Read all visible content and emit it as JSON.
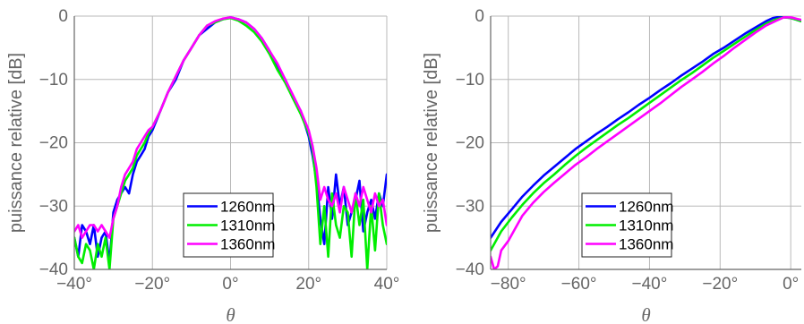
{
  "chart_data": [
    {
      "type": "line",
      "xlabel": "θ",
      "ylabel": "puissance relative [dB]",
      "xlim": [
        -40,
        40
      ],
      "ylim": [
        -40,
        0
      ],
      "xticks": [
        -40,
        -20,
        0,
        20,
        40
      ],
      "xtick_labels": [
        "−40°",
        "−20°",
        "0°",
        "20°",
        "40°"
      ],
      "yticks": [
        -40,
        -30,
        -20,
        -10,
        0
      ],
      "ytick_labels": [
        "−40",
        "−30",
        "−20",
        "−10",
        "0"
      ],
      "grid": true,
      "legend_position": "bottom-center",
      "series": [
        {
          "name": "1260nm",
          "color": "#0000ff",
          "x": [
            -40,
            -39,
            -38,
            -37,
            -36,
            -35,
            -34,
            -33,
            -32,
            -31,
            -30,
            -29,
            -28,
            -27,
            -26,
            -25,
            -24,
            -23,
            -22,
            -21,
            -20,
            -18,
            -16,
            -14,
            -12,
            -10,
            -8,
            -6,
            -4,
            -2,
            0,
            2,
            4,
            6,
            8,
            10,
            12,
            14,
            16,
            18,
            20,
            21,
            22,
            23,
            24,
            25,
            26,
            27,
            28,
            29,
            30,
            31,
            32,
            33,
            34,
            35,
            36,
            37,
            38,
            39,
            40
          ],
          "y": [
            -35,
            -38,
            -33,
            -34,
            -36,
            -33,
            -38,
            -35,
            -34,
            -39,
            -31,
            -29,
            -28,
            -27,
            -28,
            -25,
            -23,
            -22,
            -21,
            -19,
            -18,
            -15,
            -12,
            -10,
            -7,
            -5,
            -3,
            -2,
            -1,
            -0.5,
            -0.2,
            -0.5,
            -1,
            -2,
            -3.5,
            -5.5,
            -8,
            -10,
            -13,
            -15,
            -19,
            -22,
            -26,
            -32,
            -36,
            -27,
            -32,
            -25,
            -30,
            -27,
            -33,
            -31,
            -29,
            -26,
            -34,
            -31,
            -29,
            -32,
            -28,
            -30,
            -25
          ]
        },
        {
          "name": "1310nm",
          "color": "#00ee00",
          "x": [
            -40,
            -39,
            -38,
            -37,
            -36,
            -35,
            -34,
            -33,
            -32,
            -31,
            -30,
            -29,
            -28,
            -27,
            -26,
            -25,
            -24,
            -23,
            -22,
            -21,
            -20,
            -18,
            -16,
            -14,
            -12,
            -10,
            -8,
            -6,
            -4,
            -2,
            0,
            2,
            4,
            6,
            8,
            10,
            12,
            14,
            16,
            18,
            20,
            21,
            22,
            23,
            24,
            25,
            26,
            27,
            28,
            29,
            30,
            31,
            32,
            33,
            34,
            35,
            36,
            37,
            38,
            39,
            40
          ],
          "y": [
            -35,
            -38,
            -39,
            -36,
            -37,
            -40,
            -36,
            -38,
            -35,
            -40,
            -32,
            -30,
            -28,
            -26,
            -25,
            -24,
            -22,
            -21,
            -20,
            -18.5,
            -17.5,
            -15,
            -12,
            -9.5,
            -7,
            -5,
            -3,
            -1.5,
            -1,
            -0.5,
            -0.3,
            -0.7,
            -1.5,
            -2.5,
            -4,
            -6,
            -8.5,
            -10.5,
            -13,
            -15.5,
            -18.5,
            -21,
            -27,
            -36,
            -30,
            -38,
            -28,
            -33,
            -35,
            -30,
            -31,
            -38,
            -28,
            -33,
            -29,
            -40,
            -30,
            -37,
            -28,
            -33,
            -36
          ]
        },
        {
          "name": "1360nm",
          "color": "#ff00ff",
          "x": [
            -40,
            -39,
            -38,
            -37,
            -36,
            -35,
            -34,
            -33,
            -32,
            -31,
            -30,
            -29,
            -28,
            -27,
            -26,
            -25,
            -24,
            -23,
            -22,
            -21,
            -20,
            -18,
            -16,
            -14,
            -12,
            -10,
            -8,
            -6,
            -4,
            -2,
            0,
            2,
            4,
            6,
            8,
            10,
            12,
            14,
            16,
            18,
            20,
            21,
            22,
            23,
            24,
            25,
            26,
            27,
            28,
            29,
            30,
            31,
            32,
            33,
            34,
            35,
            36,
            37,
            38,
            39,
            40
          ],
          "y": [
            -34,
            -33,
            -35,
            -34,
            -33,
            -33,
            -34,
            -33,
            -34,
            -35,
            -32,
            -30,
            -27,
            -25,
            -24,
            -23,
            -21,
            -20,
            -19,
            -18,
            -17.5,
            -15,
            -12,
            -9.5,
            -7,
            -5,
            -3,
            -1.5,
            -0.8,
            -0.4,
            -0.2,
            -0.5,
            -1,
            -2,
            -3.5,
            -5.5,
            -7.5,
            -10,
            -12.5,
            -15,
            -18,
            -20.5,
            -24,
            -29,
            -27,
            -29,
            -30,
            -28,
            -31,
            -27,
            -29,
            -31,
            -28,
            -30,
            -27,
            -29,
            -31,
            -28,
            -30,
            -29,
            -33
          ]
        }
      ]
    },
    {
      "type": "line",
      "xlabel": "θ",
      "ylabel": "puissance relative [dB]",
      "xlim": [
        -85,
        3
      ],
      "ylim": [
        -40,
        0
      ],
      "xticks": [
        -80,
        -60,
        -40,
        -20,
        0
      ],
      "xtick_labels": [
        "−80°",
        "−60°",
        "−40°",
        "−20°",
        "0°"
      ],
      "yticks": [
        -40,
        -30,
        -20,
        -10,
        0
      ],
      "ytick_labels": [
        "−40",
        "−30",
        "−20",
        "−10",
        "0"
      ],
      "grid": true,
      "legend_position": "bottom-right",
      "series": [
        {
          "name": "1260nm",
          "color": "#0000ff",
          "x": [
            -85,
            -82,
            -79,
            -76,
            -73,
            -70,
            -67,
            -64,
            -61,
            -58,
            -55,
            -52,
            -49,
            -46,
            -43,
            -40,
            -37,
            -34,
            -31,
            -28,
            -25,
            -22,
            -19,
            -16,
            -13,
            -10,
            -7,
            -5,
            -3,
            0,
            3
          ],
          "y": [
            -35,
            -32.5,
            -30.5,
            -28.5,
            -26.8,
            -25.2,
            -23.8,
            -22.4,
            -21,
            -19.8,
            -18.6,
            -17.5,
            -16.3,
            -15.2,
            -14,
            -12.9,
            -11.7,
            -10.6,
            -9.4,
            -8.3,
            -7.2,
            -6,
            -5,
            -3.9,
            -2.8,
            -1.8,
            -0.8,
            -0.3,
            -0.1,
            -0.3,
            -0.8
          ]
        },
        {
          "name": "1310nm",
          "color": "#00ee00",
          "x": [
            -85,
            -82,
            -79,
            -76,
            -73,
            -70,
            -67,
            -64,
            -61,
            -58,
            -55,
            -52,
            -49,
            -46,
            -43,
            -40,
            -37,
            -34,
            -31,
            -28,
            -25,
            -22,
            -19,
            -16,
            -13,
            -10,
            -7,
            -4,
            -2,
            0,
            3
          ],
          "y": [
            -37,
            -34,
            -31.8,
            -29.8,
            -28,
            -26.4,
            -25,
            -23.5,
            -22.1,
            -20.8,
            -19.6,
            -18.4,
            -17.2,
            -16.1,
            -14.9,
            -13.7,
            -12.5,
            -11.3,
            -10.1,
            -9,
            -7.8,
            -6.6,
            -5.5,
            -4.4,
            -3.3,
            -2.2,
            -1.2,
            -0.5,
            -0.2,
            -0.3,
            -0.8
          ]
        },
        {
          "name": "1360nm",
          "color": "#ff00ff",
          "x": [
            -85,
            -84,
            -83,
            -82,
            -80,
            -78,
            -76,
            -73,
            -70,
            -67,
            -64,
            -61,
            -58,
            -55,
            -52,
            -49,
            -46,
            -43,
            -40,
            -37,
            -34,
            -31,
            -28,
            -25,
            -22,
            -19,
            -16,
            -13,
            -10,
            -7,
            -4,
            -2,
            0,
            3
          ],
          "y": [
            -38,
            -40,
            -39.5,
            -37,
            -35.5,
            -33.5,
            -31.5,
            -29.5,
            -27.8,
            -26.3,
            -24.9,
            -23.5,
            -22.3,
            -21,
            -19.8,
            -18.6,
            -17.4,
            -16.2,
            -15,
            -13.8,
            -12.5,
            -11.2,
            -10,
            -8.8,
            -7.5,
            -6.3,
            -5,
            -3.8,
            -2.6,
            -1.5,
            -0.7,
            -0.2,
            -0.2,
            -0.6
          ]
        }
      ]
    }
  ]
}
